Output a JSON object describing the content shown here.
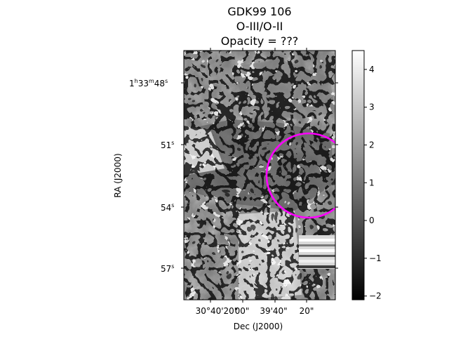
{
  "title": {
    "line1": "GDK99 106",
    "line2": "O-III/O-II",
    "line3": "Opacity = ???"
  },
  "axes": {
    "xlabel": "Dec (J2000)",
    "ylabel": "RA (J2000)",
    "x_ticks": [
      "30°40'20\"",
      "00\"",
      "39'40\"",
      "20\""
    ],
    "y_ticks": [
      {
        "base": "1",
        "h": "h",
        "mid": "33",
        "m": "m",
        "sec": "48",
        "s": "s"
      },
      {
        "sec": "51",
        "s": "s"
      },
      {
        "sec": "54",
        "s": "s"
      },
      {
        "sec": "57",
        "s": "s"
      }
    ]
  },
  "colorbar": {
    "ticks": [
      "4",
      "3",
      "2",
      "1",
      "0",
      "−1",
      "−2"
    ],
    "range": [
      -2.1,
      4.5
    ],
    "colormap": "gray"
  },
  "region": {
    "shape": "circle",
    "color": "#ff00ff"
  }
}
